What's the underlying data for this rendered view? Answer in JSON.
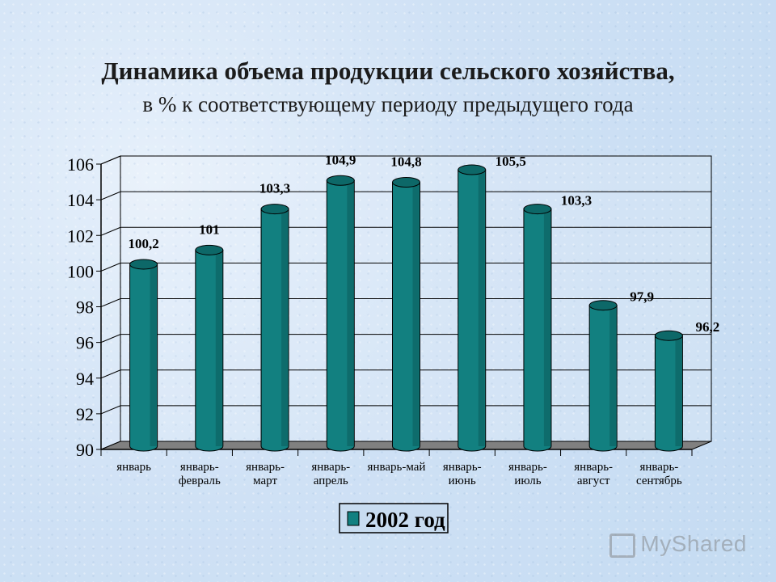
{
  "title": "Динамика объема продукции сельского хозяйства,",
  "subtitle": "в % к соответствующему периоду предыдущего года",
  "logo_text": "MyShared",
  "colors": {
    "bar_front": "#128080",
    "bar_top": "#0d6868",
    "bar_side": "#0a5555",
    "floor": "#808080",
    "grid": "#000000"
  },
  "chart_data": {
    "type": "bar",
    "categories": [
      [
        "январь"
      ],
      [
        "январь-",
        "февраль"
      ],
      [
        "январь-",
        "март"
      ],
      [
        "январь-",
        "апрель"
      ],
      [
        "январь-май"
      ],
      [
        "январь-",
        "июнь"
      ],
      [
        "январь-",
        "июль"
      ],
      [
        "январь-",
        "август"
      ],
      [
        "январь-",
        "сентябрь"
      ]
    ],
    "series": [
      {
        "name": "2002 год",
        "values": [
          100.2,
          101,
          103.3,
          104.9,
          104.8,
          105.5,
          103.3,
          97.9,
          96.2
        ],
        "labels": [
          "100,2",
          "101",
          "103,3",
          "104,9",
          "104,8",
          "105,5",
          "103,3",
          "97,9",
          "96,2"
        ]
      }
    ],
    "ylim": [
      90,
      106
    ],
    "yticks": [
      90,
      92,
      94,
      96,
      98,
      100,
      102,
      104,
      106
    ],
    "grid": true,
    "legend": "bottom-center",
    "three_d": true
  }
}
